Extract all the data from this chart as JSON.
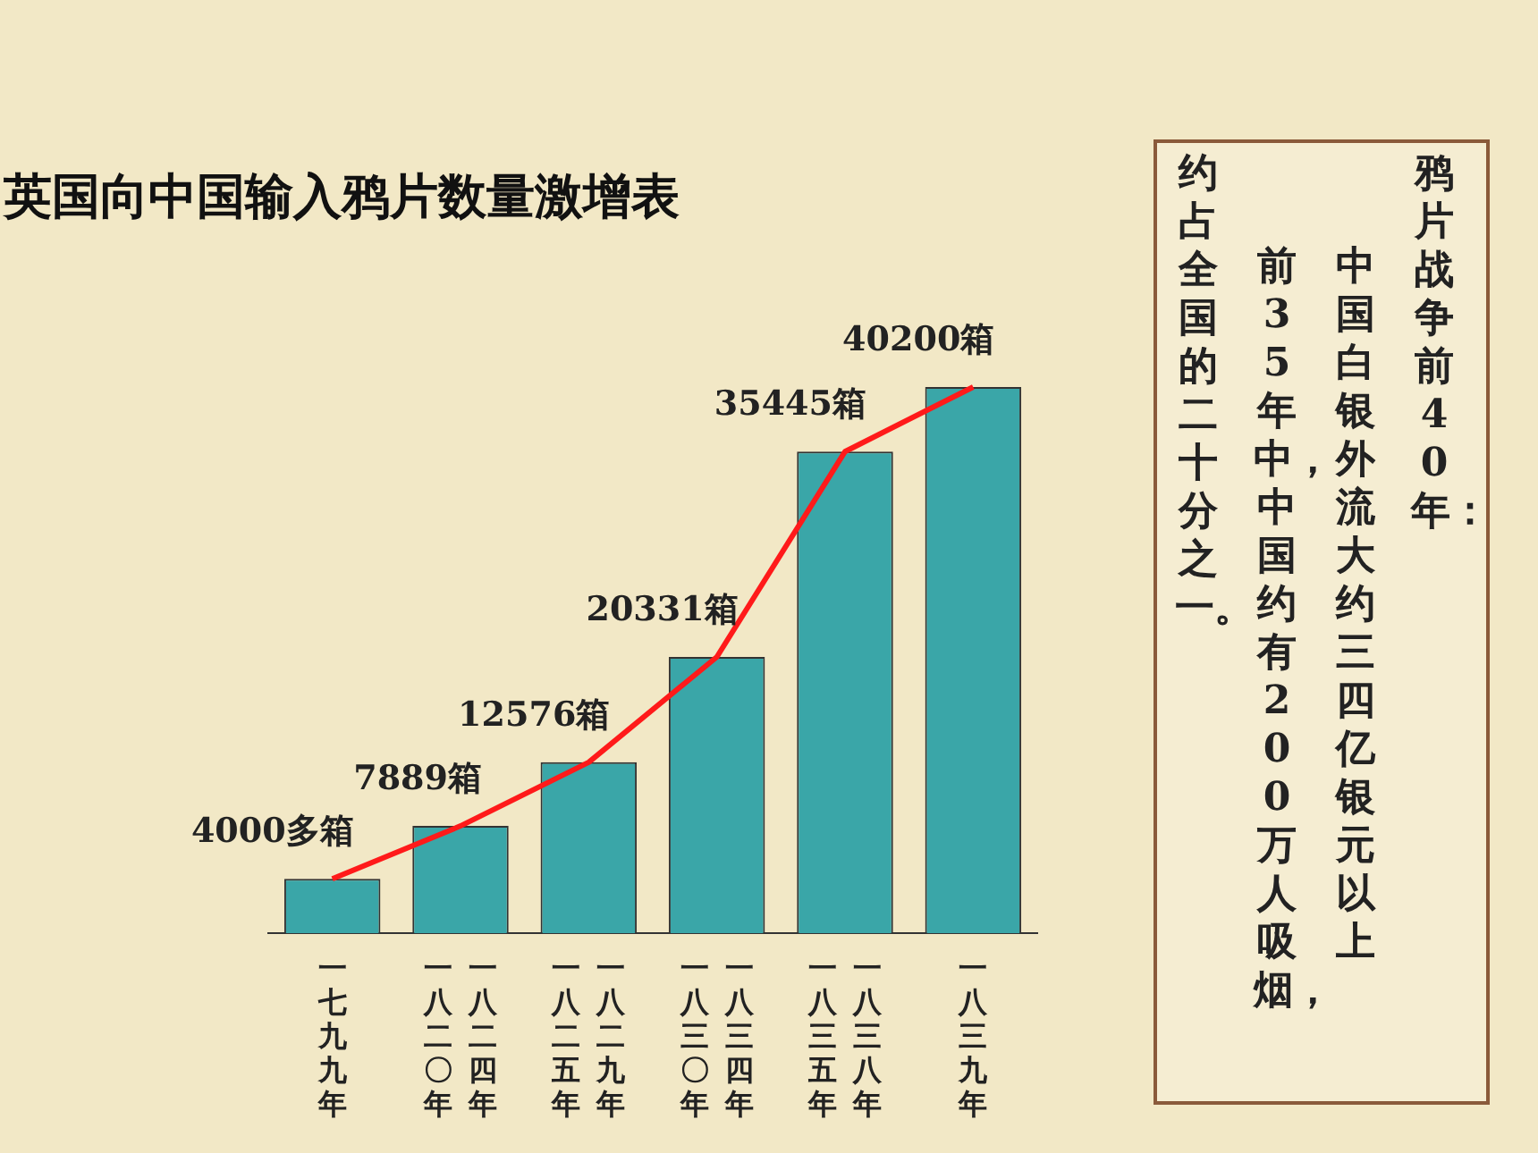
{
  "chart_data": {
    "type": "bar",
    "title": "英国向中国输入鸦片数量激增表",
    "categories": [
      "一七九九年",
      "一八二〇年一八二四年",
      "一八二五年一八二九年",
      "一八三〇年一八三四年",
      "一八三五年一八三八年",
      "一八三九年"
    ],
    "series": [
      {
        "color": "#3aa6a8",
        "values": [
          4000,
          7889,
          12576,
          20331,
          35445,
          40200
        ],
        "value_labels": [
          "4000多箱",
          "7889箱",
          "12576箱",
          "20331箱",
          "35445箱",
          "40200箱"
        ]
      },
      {
        "type": "line",
        "color": "#ff1a1a",
        "values": [
          4000,
          7889,
          12576,
          20331,
          35445,
          40200
        ]
      }
    ],
    "annotations": [
      "鸦片战争前40年：",
      "中国白银外流大约三四亿银元以上",
      "前35年中，中国约有200万人吸烟，",
      "约占全国的二十分之一。"
    ],
    "legend": false,
    "grid": false
  }
}
